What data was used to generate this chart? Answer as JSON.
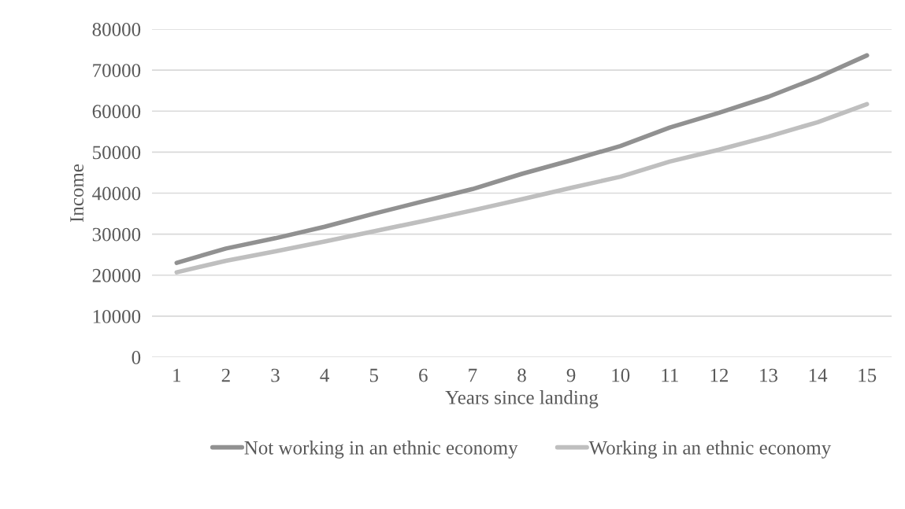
{
  "chart_data": {
    "type": "line",
    "xlabel": "Years since landing",
    "ylabel": "Income",
    "categories": [
      "1",
      "2",
      "3",
      "4",
      "5",
      "6",
      "7",
      "8",
      "9",
      "10",
      "11",
      "12",
      "13",
      "14",
      "15"
    ],
    "series": [
      {
        "name": "Not working in an ethnic economy",
        "color": "#919191",
        "values": [
          23000,
          26500,
          29000,
          31800,
          35000,
          38000,
          41000,
          44700,
          48000,
          51500,
          56000,
          59600,
          63500,
          68200,
          73600
        ]
      },
      {
        "name": "Working in an ethnic economy",
        "color": "#bfbfbf",
        "values": [
          20700,
          23500,
          25800,
          28200,
          30700,
          33200,
          35800,
          38500,
          41300,
          44000,
          47700,
          50600,
          53800,
          57300,
          61700
        ]
      }
    ],
    "ylim": [
      0,
      80000
    ],
    "yticks": [
      0,
      10000,
      20000,
      30000,
      40000,
      50000,
      60000,
      70000,
      80000
    ],
    "grid": "y",
    "legend": "bottom",
    "marker": "none",
    "line_style": "solid"
  }
}
